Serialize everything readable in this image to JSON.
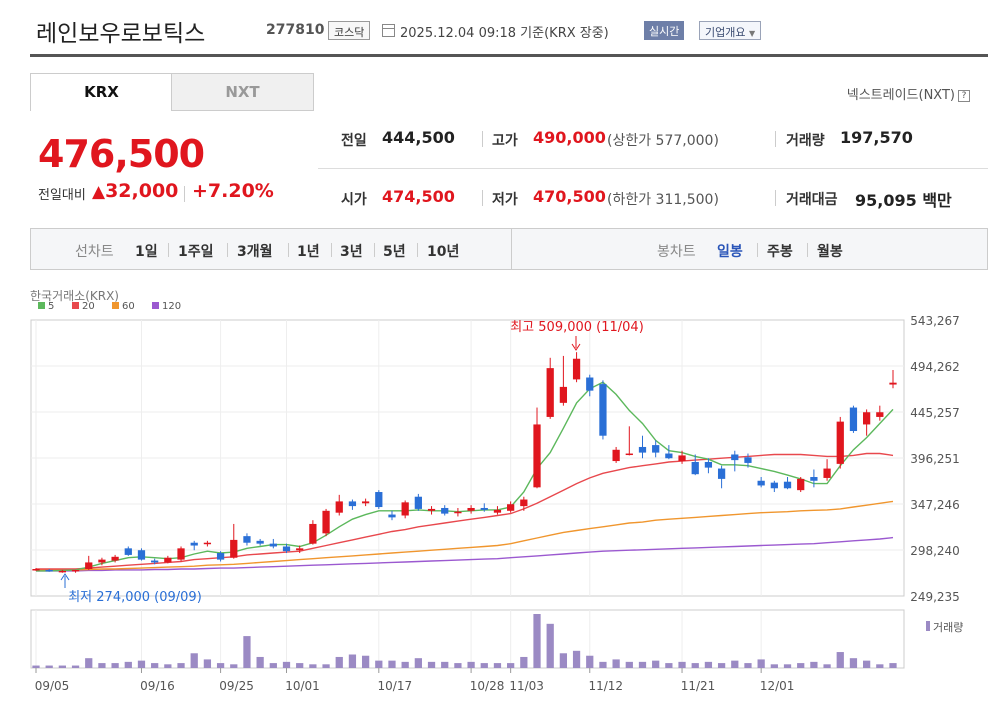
{
  "header": {
    "name": "레인보우로보틱스",
    "code": "277810",
    "market": "코스닥",
    "datetime": "2025.12.04 09:18",
    "basis": "기준(KRX 장중)",
    "live_badge": "실시간",
    "company_info": "기업개요"
  },
  "tabs": {
    "krx": "KRX",
    "nxt": "NXT"
  },
  "nxt_link": "넥스트레이드(NXT)",
  "quote": {
    "price": "476,500",
    "change_label": "전일대비",
    "change": "32,000",
    "change_pct": "+7.20%",
    "prev_label": "전일",
    "prev": "444,500",
    "high_label": "고가",
    "high": "490,000",
    "upper_label": "(상한가 577,000)",
    "volume_label": "거래량",
    "volume": "197,570",
    "open_label": "시가",
    "open": "474,500",
    "low_label": "저가",
    "low": "470,500",
    "lower_label": "(하한가 311,500)",
    "amount_label": "거래대금",
    "amount": "95,095",
    "amount_unit": "백만"
  },
  "period_bar": {
    "line_label": "선차트",
    "periods": [
      "1일",
      "1주일",
      "3개월",
      "1년",
      "3년",
      "5년",
      "10년"
    ],
    "candle_label": "봉차트",
    "candles": [
      "일봉",
      "주봉",
      "월봉"
    ],
    "active_candle": "일봉"
  },
  "chart_source": "한국거래소(KRX)",
  "colors": {
    "up": "#e0161e",
    "down": "#2a6fd6",
    "ma5": "#5cb85c",
    "ma20": "#e8484d",
    "ma60": "#f0962e",
    "ma120": "#9b59d0",
    "volume": "#9b8ac4"
  },
  "chart_data": {
    "type": "candlestick",
    "legend": [
      "5",
      "20",
      "60",
      "120"
    ],
    "y_ticks": [
      "543,267",
      "494,262",
      "445,257",
      "396,251",
      "347,246",
      "298,240",
      "249,235"
    ],
    "ylim": [
      249235,
      543267
    ],
    "x_ticks": [
      "09/05",
      "09/16",
      "09/25",
      "10/01",
      "10/17",
      "10/28",
      "11/03",
      "11/12",
      "11/21",
      "12/01"
    ],
    "x_tick_index": [
      0,
      8,
      14,
      19,
      26,
      33,
      36,
      42,
      49,
      55
    ],
    "annotation_high": "최고 509,000 (11/04)",
    "annotation_low": "최저 274,000 (09/09)",
    "volume_label": "거래량",
    "ohlc": [
      [
        277000,
        279000,
        276000,
        278000
      ],
      [
        277000,
        278000,
        275000,
        276000
      ],
      [
        276000,
        277000,
        274000,
        276000
      ],
      [
        276000,
        277000,
        274000,
        277000
      ],
      [
        278000,
        292000,
        277000,
        285000
      ],
      [
        285000,
        290000,
        282000,
        288000
      ],
      [
        287000,
        293000,
        285000,
        291000
      ],
      [
        300000,
        302000,
        292000,
        293000
      ],
      [
        298000,
        300000,
        287000,
        288000
      ],
      [
        287000,
        289000,
        283000,
        285000
      ],
      [
        285000,
        292000,
        284000,
        290000
      ],
      [
        288000,
        302000,
        286000,
        300000
      ],
      [
        306000,
        308000,
        298000,
        303000
      ],
      [
        306000,
        308000,
        302000,
        306000
      ],
      [
        295000,
        297000,
        286000,
        288000
      ],
      [
        290000,
        326000,
        289000,
        309000
      ],
      [
        313000,
        316000,
        303000,
        306000
      ],
      [
        308000,
        310000,
        303000,
        305000
      ],
      [
        305000,
        310000,
        300000,
        302000
      ],
      [
        302000,
        305000,
        295000,
        297000
      ],
      [
        298000,
        303000,
        295000,
        300000
      ],
      [
        305000,
        330000,
        304000,
        326000
      ],
      [
        316000,
        342000,
        313000,
        340000
      ],
      [
        338000,
        357000,
        335000,
        350000
      ],
      [
        350000,
        352000,
        341000,
        345000
      ],
      [
        348000,
        353000,
        345000,
        350000
      ],
      [
        360000,
        362000,
        342000,
        344000
      ],
      [
        336000,
        340000,
        330000,
        333000
      ],
      [
        335000,
        351000,
        332000,
        349000
      ],
      [
        355000,
        358000,
        340000,
        342000
      ],
      [
        340000,
        345000,
        336000,
        342000
      ],
      [
        343000,
        346000,
        335000,
        337000
      ],
      [
        338000,
        343000,
        334000,
        339000
      ],
      [
        340000,
        346000,
        337000,
        343000
      ],
      [
        343000,
        348000,
        339000,
        341000
      ],
      [
        338000,
        345000,
        336000,
        341000
      ],
      [
        340000,
        350000,
        338000,
        347000
      ],
      [
        345000,
        355000,
        340000,
        352000
      ],
      [
        365000,
        450000,
        364000,
        432000
      ],
      [
        440000,
        503000,
        438000,
        492000
      ],
      [
        455000,
        505000,
        452000,
        472000
      ],
      [
        480000,
        509000,
        477000,
        502000
      ],
      [
        482000,
        485000,
        462000,
        468000
      ],
      [
        475000,
        479000,
        416000,
        420000
      ],
      [
        393000,
        408000,
        391000,
        405000
      ],
      [
        400000,
        430000,
        399000,
        401000
      ],
      [
        408000,
        420000,
        396000,
        402000
      ],
      [
        410000,
        415000,
        397000,
        402000
      ],
      [
        401000,
        410000,
        395000,
        396000
      ],
      [
        393000,
        404000,
        390000,
        399000
      ],
      [
        392000,
        400000,
        378000,
        379000
      ],
      [
        392000,
        396000,
        380000,
        386000
      ],
      [
        385000,
        388000,
        364000,
        374000
      ],
      [
        400000,
        404000,
        382000,
        394000
      ],
      [
        397000,
        401000,
        386000,
        391000
      ],
      [
        372000,
        376000,
        365000,
        367000
      ],
      [
        370000,
        372000,
        360000,
        364000
      ],
      [
        371000,
        376000,
        363000,
        364000
      ],
      [
        362000,
        376000,
        360000,
        374000
      ],
      [
        376000,
        384000,
        365000,
        372000
      ],
      [
        375000,
        395000,
        372000,
        385000
      ],
      [
        390000,
        440000,
        385000,
        435000
      ],
      [
        450000,
        452000,
        423000,
        425000
      ],
      [
        432000,
        448000,
        420000,
        445000
      ],
      [
        440000,
        452000,
        436000,
        445000
      ],
      [
        474500,
        490000,
        470500,
        476500
      ]
    ],
    "ma5": [
      276000,
      276000,
      276500,
      277000,
      280000,
      284000,
      287000,
      290000,
      291000,
      290000,
      289000,
      290000,
      294000,
      297000,
      295000,
      296000,
      300000,
      302000,
      304000,
      304000,
      302000,
      306000,
      314000,
      323000,
      331000,
      336000,
      340000,
      340000,
      340000,
      341000,
      340000,
      340000,
      339000,
      340000,
      341000,
      341000,
      344000,
      360000,
      385000,
      402000,
      428000,
      455000,
      470000,
      477000,
      464000,
      447000,
      433000,
      415000,
      404000,
      402000,
      398000,
      395000,
      389000,
      389000,
      388000,
      385000,
      382000,
      378000,
      374000,
      369000,
      369000,
      388000,
      405000,
      418000,
      433000,
      448000
    ],
    "ma20": [
      278000,
      278000,
      278000,
      278000,
      279000,
      280000,
      281000,
      282000,
      283000,
      284000,
      285000,
      286000,
      288000,
      289000,
      290000,
      291000,
      293000,
      294000,
      295000,
      296000,
      297000,
      300000,
      303000,
      306000,
      309000,
      312000,
      315000,
      318000,
      320000,
      323000,
      325000,
      327000,
      329000,
      331000,
      333000,
      335000,
      337000,
      342000,
      348000,
      355000,
      362000,
      369000,
      375000,
      380000,
      383000,
      386000,
      388000,
      390000,
      392000,
      393000,
      394000,
      395000,
      396000,
      397000,
      398000,
      399000,
      400000,
      400000,
      400000,
      399000,
      398000,
      398000,
      399000,
      401000,
      401000,
      399000
    ],
    "ma60": [
      277000,
      277000,
      277000,
      277000,
      277500,
      278000,
      278000,
      278500,
      279000,
      279500,
      280000,
      280500,
      281000,
      282000,
      282500,
      283000,
      284000,
      285000,
      286000,
      287000,
      288000,
      289000,
      290000,
      291000,
      292000,
      293000,
      294000,
      295000,
      296000,
      297000,
      298000,
      299000,
      300000,
      301000,
      302000,
      303000,
      305000,
      308000,
      311000,
      314000,
      317000,
      319000,
      321000,
      323000,
      325000,
      327000,
      328000,
      330000,
      331000,
      332000,
      333000,
      334000,
      335000,
      336000,
      337000,
      338000,
      338500,
      339000,
      340000,
      340500,
      341000,
      342000,
      344000,
      346000,
      348000,
      350000
    ],
    "ma120": [
      276000,
      276000,
      276000,
      276000,
      276500,
      276500,
      277000,
      277000,
      277000,
      277500,
      277500,
      278000,
      278000,
      278500,
      279000,
      279000,
      279500,
      280000,
      280500,
      281000,
      281500,
      282000,
      282500,
      283000,
      283500,
      284000,
      284500,
      285000,
      285500,
      286000,
      286500,
      287000,
      287500,
      288000,
      288500,
      289000,
      290000,
      291000,
      292000,
      293000,
      294000,
      295000,
      296000,
      297000,
      297500,
      298000,
      298500,
      299000,
      299500,
      300000,
      300500,
      301000,
      301500,
      302000,
      302500,
      303000,
      303500,
      304000,
      304500,
      305000,
      306000,
      307000,
      308000,
      309000,
      310000,
      311500
    ],
    "volume": [
      2,
      2,
      2,
      2,
      8,
      4,
      4,
      5,
      6,
      4,
      3,
      4,
      12,
      7,
      4,
      3,
      26,
      9,
      4,
      5,
      4,
      3,
      3,
      9,
      11,
      10,
      6,
      6,
      5,
      8,
      5,
      5,
      4,
      5,
      4,
      4,
      4,
      9,
      44,
      36,
      12,
      14,
      10,
      5,
      7,
      5,
      5,
      6,
      4,
      5,
      4,
      5,
      4,
      6,
      4,
      7,
      3,
      3,
      4,
      5,
      3,
      13,
      8,
      6,
      3,
      4
    ]
  }
}
